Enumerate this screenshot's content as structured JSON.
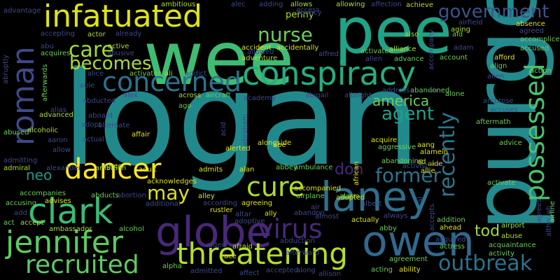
{
  "wordcloud": {
    "background": "#000000",
    "words": {
      "logan": "logan",
      "purge": "purge",
      "wee": "wee",
      "pee": "pee",
      "globe": "globe",
      "laney": "laney",
      "owen": "owen",
      "conspiracy": "conspiracy",
      "infatuated": "infatuated",
      "clark": "clark",
      "jennifer": "jennifer",
      "threatening": "threatening",
      "dancer": "dancer",
      "recruited": "recruited",
      "virus": "virus",
      "roman": "roman",
      "possessed": "possessed",
      "concerned": "concerned",
      "cure": "cure",
      "outbreak": "outbreak",
      "care": "care",
      "nurse": "nurse",
      "government": "government",
      "becomes": "becomes",
      "recently": "recently",
      "former": "former",
      "may": "may",
      "agent": "agent",
      "america": "america",
      "tod": "tod",
      "don": "don",
      "neo": "neo",
      "penny": "penny",
      "activity": "activity",
      "achieve": "achieve",
      "absence": "absence",
      "afford": "afford",
      "action": "action",
      "accuses": "accuses",
      "advice": "advice",
      "activate": "activate",
      "aging": "aging",
      "abuse": "abuse",
      "airport": "airport",
      "agree": "agree",
      "aaron": "aaron",
      "alcoholic": "alcoholic",
      "abused": "abused",
      "admiral": "admiral",
      "alexander": "alexander",
      "ambition": "ambition",
      "accompanies": "accompanies",
      "advises": "advises",
      "accusing": "accusing",
      "accept": "accept",
      "act": "act",
      "ambassador": "ambassador",
      "alcohol": "alcohol",
      "alpha": "alpha",
      "admitted": "admitted",
      "afraid": "afraid",
      "affect": "affect",
      "accepted": "accepted",
      "along": "along",
      "allison": "allison",
      "acting": "acting",
      "ability": "ability",
      "agreement": "agreement",
      "actress": "actress",
      "acquaintance": "acquaintance",
      "advantage": "advantage",
      "ambitious": "ambitious",
      "alec": "alec",
      "adding": "adding",
      "allows": "allows",
      "access": "access",
      "allowing": "allowing",
      "affection": "affection",
      "agency": "agency",
      "accident": "accident",
      "accidentally": "accidentally",
      "alfred": "alfred",
      "allen": "allen",
      "advance": "advance",
      "alliance": "alliance",
      "activated": "activated",
      "adventure": "adventure",
      "allowed": "allowed",
      "actor": "actor",
      "active": "active",
      "abusive": "abusive",
      "already": "already",
      "accepting": "accepting",
      "also": "also",
      "aid": "aid",
      "account": "account",
      "airfield": "airfield",
      "adam": "adam",
      "agreed": "agreed",
      "accomplice": "accomplice",
      "accused": "accused",
      "align": "align",
      "alien": "alien",
      "address": "address",
      "abandoned": "abandoned",
      "alone": "alone",
      "academy": "academy",
      "abigail": "abigail",
      "albright": "albright",
      "alice": "alice",
      "activates": "activates",
      "ali": "ali",
      "addict": "addict",
      "alex": "alex",
      "aircraft": "aircraft",
      "across": "across",
      "ago": "ago",
      "ambrose": "ambrose",
      "aftermath": "aftermath",
      "able": "able",
      "abducted": "abducted",
      "aboard": "aboard",
      "alias": "alias",
      "advanced": "advanced",
      "actual": "actual",
      "adopt": "adopt",
      "alternate": "alternate",
      "affair": "affair",
      "acid": "acid",
      "abraham": "abraham",
      "alongside": "alongside",
      "african": "african",
      "acquire": "acquire",
      "aggressive": "aggressive",
      "aide": "aide",
      "ad": "ad",
      "abandoning": "abandoning",
      "alamein": "alamein",
      "aang": "aang",
      "admitting": "admitting",
      "allow": "allow",
      "acknowledges": "acknowledges",
      "adult": "adult",
      "admits": "admits",
      "alan": "alan",
      "abbey": "abbey",
      "alerted": "alerted",
      "abe": "abe",
      "activist": "activist",
      "allie": "allie",
      "aim": "aim",
      "ambulance": "ambulance",
      "accompanied": "accompanied",
      "airplane": "airplane",
      "alarm": "alarm",
      "adopted": "adopted",
      "albert": "albert",
      "air": "air",
      "according": "according",
      "alley": "alley",
      "abortion": "abortion",
      "abducts": "abducts",
      "additional": "additional",
      "rustler": "rustler",
      "altar": "altar",
      "ally": "ally",
      "abandon": "abandon",
      "adoptive": "adoptive",
      "almost": "almost",
      "actually": "actually",
      "always": "always",
      "abby": "abby",
      "abduction": "abduction",
      "aided": "aided",
      "afterward": "afterward",
      "ace": "ace",
      "acquires": "acquires",
      "add": "add",
      "abruptly": "abruptly",
      "afterwards": "afterwards",
      "abu": "abu",
      "agreeing": "agreeing",
      "accepts": "accepts",
      "addition": "addition",
      "acquired": "acquired",
      "ahead": "ahead",
      "al": "al",
      "ah": "ah",
      "accompany": "accompany",
      "although": "although",
      "agrees": "agrees",
      "airline": "airline"
    }
  }
}
